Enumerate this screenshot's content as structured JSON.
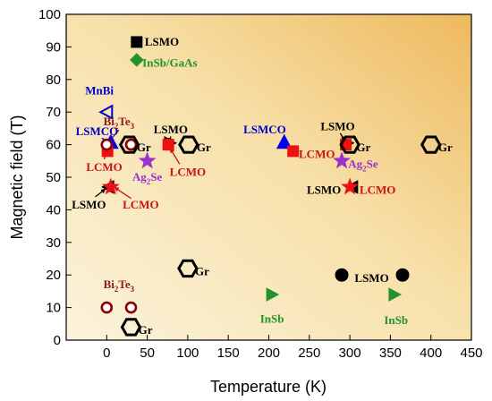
{
  "chart_data": {
    "type": "scatter",
    "title": "",
    "xlabel": "Temperature (K)",
    "ylabel": "Magnetic field (T)",
    "xlim": [
      -50,
      450
    ],
    "ylim": [
      0,
      100
    ],
    "x_ticks": [
      0,
      50,
      100,
      150,
      200,
      250,
      300,
      350,
      400,
      450
    ],
    "y_ticks": [
      0,
      10,
      20,
      30,
      40,
      50,
      60,
      70,
      80,
      90,
      100
    ],
    "grid": false,
    "legend": "none",
    "background": "warm yellow-orange gradient",
    "points": [
      {
        "id": "lsmo-91",
        "x": 37,
        "y": 91.5,
        "marker": "square",
        "fill": "#000000",
        "stroke": "#000000"
      },
      {
        "id": "insb-gaas-86",
        "x": 37,
        "y": 86,
        "marker": "diamond",
        "fill": "#22922b",
        "stroke": "#22922b"
      },
      {
        "id": "mnbi-70",
        "x": 0,
        "y": 70,
        "marker": "triangle-left",
        "fill": "none",
        "stroke": "#0000cc"
      },
      {
        "id": "lsmco-60a",
        "x": 5,
        "y": 60.5,
        "marker": "triangle-up",
        "fill": "#0000ee",
        "stroke": "#0000ee"
      },
      {
        "id": "lcmo-58a",
        "x": 1,
        "y": 58,
        "marker": "square",
        "fill": "#ee1111",
        "stroke": "#ee1111"
      },
      {
        "id": "bite-60a",
        "x": 0,
        "y": 60,
        "marker": "circle-open",
        "fill": "#ffffff",
        "stroke": "#8b0000"
      },
      {
        "id": "bite-60b",
        "x": 30,
        "y": 60,
        "marker": "circle-open",
        "fill": "#ffffff",
        "stroke": "#8b0000"
      },
      {
        "id": "gr-60a",
        "x": 28,
        "y": 60,
        "marker": "hexagon",
        "fill": "none",
        "stroke": "#000000"
      },
      {
        "id": "lsmo-60a",
        "x": 78,
        "y": 60.5,
        "marker": "triangle-right",
        "fill": "#000000",
        "stroke": "#000000"
      },
      {
        "id": "lcmo-60a",
        "x": 76,
        "y": 60,
        "marker": "square",
        "fill": "#ee1111",
        "stroke": "#ee1111"
      },
      {
        "id": "gr-60b",
        "x": 101,
        "y": 60,
        "marker": "hexagon",
        "fill": "none",
        "stroke": "#000000"
      },
      {
        "id": "agse-55a",
        "x": 50,
        "y": 55,
        "marker": "star",
        "fill": "#9933cc",
        "stroke": "#9933cc"
      },
      {
        "id": "lsmo-47a",
        "x": 2,
        "y": 47,
        "marker": "triangle-left",
        "fill": "#000000",
        "stroke": "#000000"
      },
      {
        "id": "lcmo-47a",
        "x": 5,
        "y": 47,
        "marker": "star",
        "fill": "#ee1111",
        "stroke": "#ee1111"
      },
      {
        "id": "lsmco-60b",
        "x": 219,
        "y": 60.5,
        "marker": "triangle-up",
        "fill": "#0000ee",
        "stroke": "#0000ee"
      },
      {
        "id": "lcmo-58b",
        "x": 230,
        "y": 58,
        "marker": "square",
        "fill": "#ee1111",
        "stroke": "#ee1111"
      },
      {
        "id": "lsmo-60b",
        "x": 297,
        "y": 60.5,
        "marker": "triangle-right",
        "fill": "#000000",
        "stroke": "#000000"
      },
      {
        "id": "lcmo-60b",
        "x": 295,
        "y": 60,
        "marker": "square",
        "fill": "#ee1111",
        "stroke": "#ee1111"
      },
      {
        "id": "gr-60c",
        "x": 300,
        "y": 60,
        "marker": "hexagon",
        "fill": "none",
        "stroke": "#000000"
      },
      {
        "id": "gr-60d",
        "x": 400,
        "y": 60,
        "marker": "hexagon",
        "fill": "none",
        "stroke": "#000000"
      },
      {
        "id": "agse-55b",
        "x": 290,
        "y": 55,
        "marker": "star",
        "fill": "#9933cc",
        "stroke": "#9933cc"
      },
      {
        "id": "lsmo-47b",
        "x": 303,
        "y": 47,
        "marker": "triangle-left",
        "fill": "#000000",
        "stroke": "#000000"
      },
      {
        "id": "lcmo-47b",
        "x": 300,
        "y": 47,
        "marker": "star",
        "fill": "#ee1111",
        "stroke": "#ee1111"
      },
      {
        "id": "gr-22",
        "x": 100,
        "y": 22,
        "marker": "hexagon",
        "fill": "none",
        "stroke": "#000000"
      },
      {
        "id": "lsmo-20a",
        "x": 290,
        "y": 20,
        "marker": "circle",
        "fill": "#000000",
        "stroke": "#000000"
      },
      {
        "id": "lsmo-20b",
        "x": 365,
        "y": 20,
        "marker": "circle",
        "fill": "#000000",
        "stroke": "#000000"
      },
      {
        "id": "insb-14a",
        "x": 204,
        "y": 14,
        "marker": "triangle-right",
        "fill": "#22922b",
        "stroke": "#22922b"
      },
      {
        "id": "insb-14b",
        "x": 355,
        "y": 14,
        "marker": "triangle-right",
        "fill": "#22922b",
        "stroke": "#22922b"
      },
      {
        "id": "bite-10a",
        "x": 0,
        "y": 10,
        "marker": "circle-open",
        "fill": "#ffffff",
        "stroke": "#8b0000"
      },
      {
        "id": "bite-10b",
        "x": 30,
        "y": 10,
        "marker": "circle-open",
        "fill": "#ffffff",
        "stroke": "#8b0000"
      },
      {
        "id": "gr-4",
        "x": 30,
        "y": 4,
        "marker": "hexagon",
        "fill": "none",
        "stroke": "#000000"
      }
    ],
    "annotations": [
      {
        "id": "lsmo-top",
        "text": "LSMO",
        "x": 47,
        "y": 91.5,
        "color": "#000000",
        "anchor": "start"
      },
      {
        "id": "insb-gaas",
        "text": "InSb/GaAs",
        "x": 44,
        "y": 85,
        "color": "#22922b",
        "anchor": "start"
      },
      {
        "id": "mnbi",
        "text": "MnBi",
        "x": -9,
        "y": 76.5,
        "color": "#0000cc",
        "anchor": "middle"
      },
      {
        "id": "lsmco-a",
        "text": "LSMCO",
        "x": -12,
        "y": 64,
        "color": "#0000cc",
        "anchor": "middle"
      },
      {
        "id": "bite-a",
        "text": "Bi",
        "sub": "2",
        "tail": "Te",
        "sub2": "3",
        "x": 15,
        "y": 67,
        "color": "#8b1a1a",
        "anchor": "middle"
      },
      {
        "id": "lsmo-a",
        "text": "LSMO",
        "x": 79,
        "y": 64.5,
        "color": "#000000",
        "anchor": "middle"
      },
      {
        "id": "gr-a",
        "text": "Gr",
        "x": 37,
        "y": 59,
        "color": "#000000",
        "anchor": "start"
      },
      {
        "id": "gr-b",
        "text": "Gr",
        "x": 111,
        "y": 59,
        "color": "#000000",
        "anchor": "start"
      },
      {
        "id": "lcmo-a",
        "text": "LCMO",
        "x": -3,
        "y": 53,
        "color": "#cc1111",
        "anchor": "middle"
      },
      {
        "id": "agse-a",
        "text": "Ag",
        "sub": "2",
        "tail": "Se",
        "x": 50,
        "y": 50,
        "color": "#9933cc",
        "anchor": "middle"
      },
      {
        "id": "lcmo-b",
        "text": "LCMO",
        "x": 100,
        "y": 51.5,
        "color": "#cc1111",
        "anchor": "middle"
      },
      {
        "id": "lsmo-b",
        "text": "LSMO",
        "x": -22,
        "y": 41.5,
        "color": "#000000",
        "anchor": "middle"
      },
      {
        "id": "lcmo-c",
        "text": "LCMO",
        "x": 42,
        "y": 41.5,
        "color": "#cc1111",
        "anchor": "middle"
      },
      {
        "id": "lsmco-b",
        "text": "LSMCO",
        "x": 195,
        "y": 64.5,
        "color": "#0000cc",
        "anchor": "middle"
      },
      {
        "id": "lcmo-d",
        "text": "LCMO",
        "x": 237,
        "y": 57,
        "color": "#cc1111",
        "anchor": "start"
      },
      {
        "id": "lsmo-c",
        "text": "LSMO",
        "x": 285,
        "y": 65.5,
        "color": "#000000",
        "anchor": "middle"
      },
      {
        "id": "gr-c",
        "text": "Gr",
        "x": 308,
        "y": 59,
        "color": "#000000",
        "anchor": "start"
      },
      {
        "id": "gr-d",
        "text": "Gr",
        "x": 409,
        "y": 59,
        "color": "#000000",
        "anchor": "start"
      },
      {
        "id": "agse-b",
        "text": "Ag",
        "sub": "2",
        "tail": "Se",
        "x": 298,
        "y": 54,
        "color": "#9933cc",
        "anchor": "start"
      },
      {
        "id": "lsmo-d",
        "text": "LSMO",
        "x": 268,
        "y": 46,
        "color": "#000000",
        "anchor": "middle"
      },
      {
        "id": "lcmo-e",
        "text": "LCMO",
        "x": 312,
        "y": 46,
        "color": "#cc1111",
        "anchor": "start"
      },
      {
        "id": "gr-e",
        "text": "Gr",
        "x": 109,
        "y": 21,
        "color": "#000000",
        "anchor": "start"
      },
      {
        "id": "lsmo-e",
        "text": "LSMO",
        "x": 327,
        "y": 19,
        "color": "#000000",
        "anchor": "middle"
      },
      {
        "id": "insb-a",
        "text": "InSb",
        "x": 204,
        "y": 6.5,
        "color": "#22922b",
        "anchor": "middle"
      },
      {
        "id": "insb-b",
        "text": "InSb",
        "x": 357,
        "y": 6,
        "color": "#22922b",
        "anchor": "middle"
      },
      {
        "id": "bite-b",
        "text": "Bi",
        "sub": "2",
        "tail": "Te",
        "sub2": "3",
        "x": 15,
        "y": 17,
        "color": "#8b1a1a",
        "anchor": "middle"
      },
      {
        "id": "gr-f",
        "text": "Gr",
        "x": 39,
        "y": 3,
        "color": "#000000",
        "anchor": "start"
      }
    ],
    "arrows": [
      {
        "id": "arrow-lsmco-a",
        "from": [
          -6,
          62
        ],
        "to": [
          5,
          60.5
        ],
        "color": "#0000cc"
      },
      {
        "id": "arrow-bite-a",
        "from": [
          15,
          64.5
        ],
        "to": [
          3,
          61
        ],
        "color": "#8b1a1a"
      },
      {
        "id": "arrow-lcmo-a",
        "from": [
          -3,
          55.5
        ],
        "to": [
          0,
          58.5
        ],
        "color": "#cc1111"
      },
      {
        "id": "arrow-lsmo-a",
        "from": [
          79,
          62.5
        ],
        "to": [
          77,
          60.5
        ],
        "color": "#000000"
      },
      {
        "id": "arrow-lcmo-b",
        "from": [
          90,
          54
        ],
        "to": [
          78,
          59
        ],
        "color": "#cc1111"
      },
      {
        "id": "arrow-lsmo-b",
        "from": [
          -14,
          44
        ],
        "to": [
          -1,
          46.5
        ],
        "color": "#000000"
      },
      {
        "id": "arrow-lcmo-c",
        "from": [
          30,
          43.5
        ],
        "to": [
          9,
          47
        ],
        "color": "#cc1111"
      },
      {
        "id": "arrow-lsmo-c",
        "from": [
          288,
          63.5
        ],
        "to": [
          295,
          61
        ],
        "color": "#000000"
      }
    ]
  }
}
